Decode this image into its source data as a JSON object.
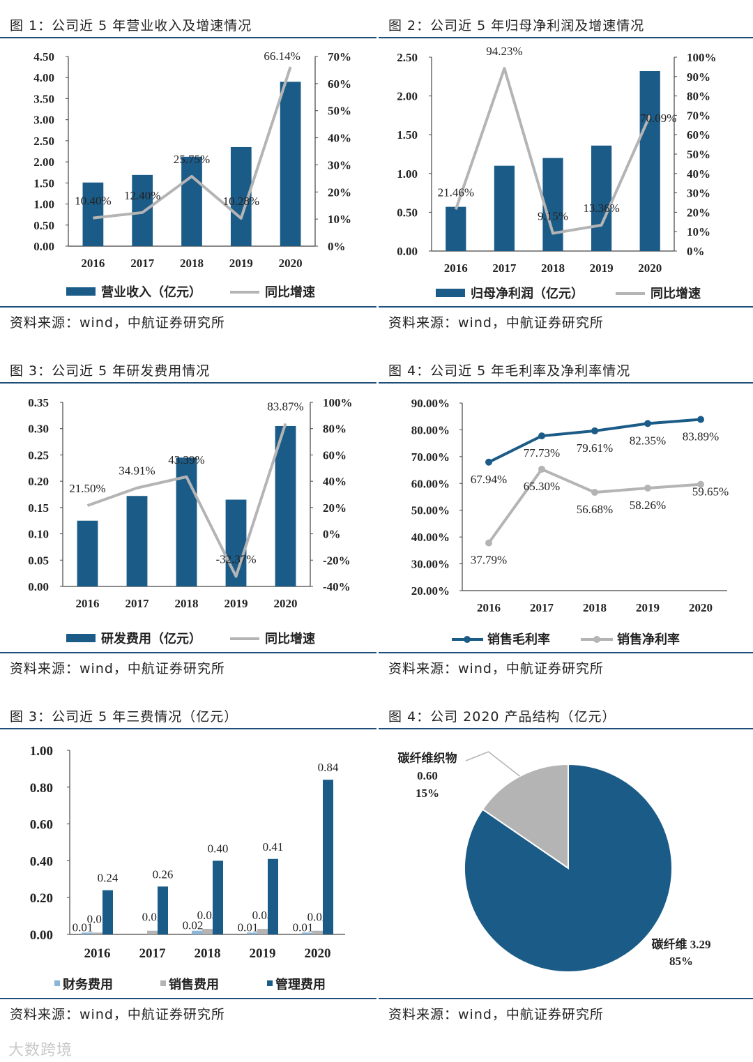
{
  "charts": [
    {
      "title": "图 1：公司近 5 年营业收入及增速情况",
      "source": "资料来源：wind，中航证券研究所"
    },
    {
      "title": "图 2：公司近 5 年归母净利润及增速情况",
      "source": "资料来源：wind，中航证券研究所"
    },
    {
      "title": "图 3：公司近 5 年研发费用情况",
      "source": "资料来源：wind，中航证券研究所"
    },
    {
      "title": "图 4：公司近 5 年毛利率及净利率情况",
      "source": "资料来源：wind，中航证券研究所"
    },
    {
      "title": "图 3：公司近 5 年三费情况（亿元）",
      "source": "资料来源：wind，中航证券研究所"
    },
    {
      "title": "图 4：公司 2020 产品结构（亿元）",
      "source": "资料来源：wind，中航证券研究所"
    }
  ],
  "colors": {
    "navy": "#1b5b87",
    "gray": "#b4b4b4",
    "lightblue": "#8ab6d9",
    "rule": "#1f4e79"
  },
  "watermark": "大数跨境",
  "chart_data": [
    {
      "type": "bar+line",
      "categories": [
        "2016",
        "2017",
        "2018",
        "2019",
        "2020"
      ],
      "bars": {
        "name": "营业收入（亿元）",
        "values": [
          1.51,
          1.69,
          2.12,
          2.35,
          3.9
        ],
        "ylim": [
          0,
          4.5
        ],
        "ticks": [
          "0.00",
          "0.50",
          "1.00",
          "1.50",
          "2.00",
          "2.50",
          "3.00",
          "3.50",
          "4.00",
          "4.50"
        ]
      },
      "line": {
        "name": "同比增速",
        "values": [
          10.4,
          12.4,
          25.75,
          10.28,
          66.14
        ],
        "ylim": [
          0,
          70
        ],
        "ticks": [
          "0%",
          "10%",
          "20%",
          "30%",
          "40%",
          "50%",
          "60%",
          "70%"
        ],
        "labels": [
          "10.40%",
          "12.40%",
          "25.75%",
          "10.28%",
          "66.14%"
        ]
      }
    },
    {
      "type": "bar+line",
      "categories": [
        "2016",
        "2017",
        "2018",
        "2019",
        "2020"
      ],
      "bars": {
        "name": "归母净利润（亿元）",
        "values": [
          0.57,
          1.1,
          1.2,
          1.36,
          2.32
        ],
        "ylim": [
          0,
          2.5
        ],
        "ticks": [
          "0.00",
          "0.50",
          "1.00",
          "1.50",
          "2.00",
          "2.50"
        ]
      },
      "line": {
        "name": "同比增速",
        "values": [
          21.46,
          94.23,
          9.15,
          13.36,
          70.09
        ],
        "ylim": [
          0,
          100
        ],
        "ticks": [
          "0%",
          "10%",
          "20%",
          "30%",
          "40%",
          "50%",
          "60%",
          "70%",
          "80%",
          "90%",
          "100%"
        ],
        "labels": [
          "21.46%",
          "94.23%",
          "9.15%",
          "13.36%",
          "70.09%"
        ]
      }
    },
    {
      "type": "bar+line",
      "categories": [
        "2016",
        "2017",
        "2018",
        "2019",
        "2020"
      ],
      "bars": {
        "name": "研发费用（亿元）",
        "values": [
          0.125,
          0.172,
          0.245,
          0.165,
          0.305
        ],
        "ylim": [
          0,
          0.35
        ],
        "ticks": [
          "0.00",
          "0.05",
          "0.10",
          "0.15",
          "0.20",
          "0.25",
          "0.30",
          "0.35"
        ]
      },
      "line": {
        "name": "同比增速",
        "values": [
          21.5,
          34.91,
          43.39,
          -32.37,
          83.87
        ],
        "ylim": [
          -40,
          100
        ],
        "ticks": [
          "-40%",
          "-20%",
          "0%",
          "20%",
          "40%",
          "60%",
          "80%",
          "100%"
        ],
        "labels": [
          "21.50%",
          "34.91%",
          "43.39%",
          "-32.37%",
          "83.87%"
        ]
      }
    },
    {
      "type": "line",
      "categories": [
        "2016",
        "2017",
        "2018",
        "2019",
        "2020"
      ],
      "ylim": [
        20,
        90
      ],
      "ticks": [
        "20.00%",
        "30.00%",
        "40.00%",
        "50.00%",
        "60.00%",
        "70.00%",
        "80.00%",
        "90.00%"
      ],
      "series": [
        {
          "name": "销售毛利率",
          "values": [
            67.94,
            77.73,
            79.61,
            82.35,
            83.89
          ],
          "labels": [
            "67.94%",
            "77.73%",
            "79.61%",
            "82.35%",
            "83.89%"
          ]
        },
        {
          "name": "销售净利率",
          "values": [
            37.79,
            65.3,
            56.68,
            58.26,
            59.65
          ],
          "labels": [
            "37.79%",
            "65.30%",
            "56.68%",
            "58.26%",
            "59.65%"
          ]
        }
      ]
    },
    {
      "type": "bar",
      "categories": [
        "2016",
        "2017",
        "2018",
        "2019",
        "2020"
      ],
      "ylim": [
        0,
        1.0
      ],
      "ticks": [
        "0.00",
        "0.20",
        "0.40",
        "0.60",
        "0.80",
        "1.00"
      ],
      "series": [
        {
          "name": "财务费用",
          "values": [
            0.01,
            0.0,
            0.02,
            0.01,
            0.01
          ],
          "labels": [
            "0.01",
            "",
            "0.02",
            "0.01",
            "0.01"
          ]
        },
        {
          "name": "销售费用",
          "values": [
            0.01,
            0.02,
            0.03,
            0.03,
            0.02
          ],
          "labels": [
            "0.01",
            "0.02",
            "0.03",
            "0.03",
            "0.02"
          ]
        },
        {
          "name": "管理费用",
          "values": [
            0.24,
            0.26,
            0.4,
            0.41,
            0.84
          ],
          "labels": [
            "0.24",
            "0.26",
            "0.40",
            "0.41",
            "0.84"
          ]
        }
      ]
    },
    {
      "type": "pie",
      "slices": [
        {
          "name": "碳纤维",
          "value": 3.29,
          "percent": "85%",
          "label_value": "3.29"
        },
        {
          "name": "碳纤维织物",
          "value": 0.6,
          "percent": "15%",
          "label_value": "0.60"
        }
      ]
    }
  ]
}
